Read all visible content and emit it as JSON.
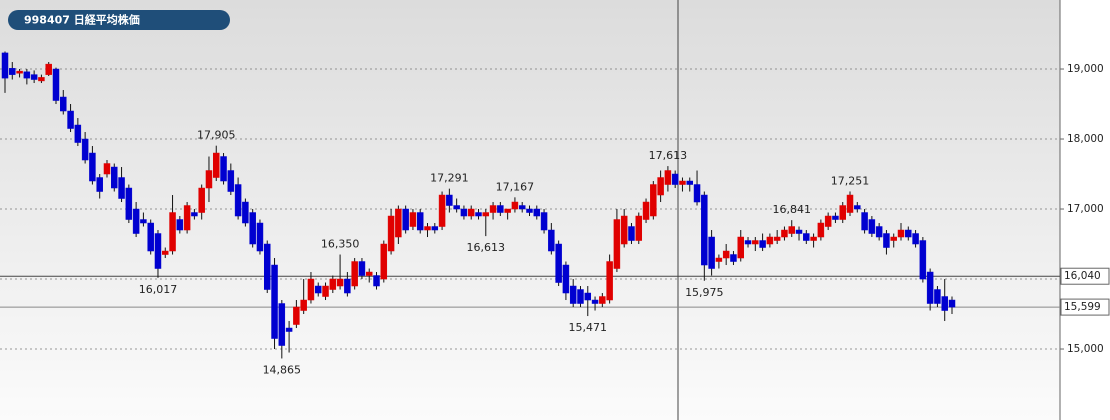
{
  "chart_data": {
    "type": "candlestick",
    "title": "998407 日経平均株価",
    "up_color": "#e00000",
    "down_color": "#0000d0",
    "ylim": [
      13986,
      19986
    ],
    "yticks": [
      {
        "value": 15000,
        "label": "15,000"
      },
      {
        "value": 16000,
        "label": "16,000"
      },
      {
        "value": 17000,
        "label": "17,000"
      },
      {
        "value": 18000,
        "label": "18,000"
      },
      {
        "value": 19000,
        "label": "19,000"
      }
    ],
    "grid": true,
    "hlines": [
      {
        "value": 16040,
        "label": "16,040"
      },
      {
        "value": 15599,
        "label": "15,599"
      }
    ],
    "annotations": [
      {
        "value": 17905,
        "label": "17,905"
      },
      {
        "value": 16017,
        "label": "16,017"
      },
      {
        "value": 14865,
        "label": "14,865"
      },
      {
        "value": 16350,
        "label": "16,350"
      },
      {
        "value": 17291,
        "label": "17,291"
      },
      {
        "value": 16613,
        "label": "16,613"
      },
      {
        "value": 17167,
        "label": "17,167"
      },
      {
        "value": 15471,
        "label": "15,471"
      },
      {
        "value": 17613,
        "label": "17,613"
      },
      {
        "value": 15975,
        "label": "15,975"
      },
      {
        "value": 16841,
        "label": "16,841"
      },
      {
        "value": 17251,
        "label": "17,251"
      }
    ],
    "candles": [
      [
        19230,
        19250,
        18660,
        18870
      ],
      [
        19010,
        19100,
        18850,
        18920
      ],
      [
        18940,
        19000,
        18880,
        18970
      ],
      [
        18960,
        19000,
        18780,
        18870
      ],
      [
        18920,
        18980,
        18800,
        18850
      ],
      [
        18830,
        18920,
        18800,
        18880
      ],
      [
        18920,
        19100,
        18900,
        19070
      ],
      [
        19000,
        19020,
        18500,
        18550
      ],
      [
        18600,
        18700,
        18350,
        18400
      ],
      [
        18400,
        18500,
        18100,
        18150
      ],
      [
        18200,
        18300,
        17900,
        17950
      ],
      [
        18000,
        18100,
        17650,
        17700
      ],
      [
        17800,
        17900,
        17350,
        17400
      ],
      [
        17450,
        17500,
        17150,
        17250
      ],
      [
        17500,
        17700,
        17450,
        17650
      ],
      [
        17600,
        17650,
        17250,
        17300
      ],
      [
        17450,
        17600,
        17100,
        17150
      ],
      [
        17300,
        17350,
        16800,
        16850
      ],
      [
        17000,
        17100,
        16600,
        16650
      ],
      [
        16850,
        16950,
        16750,
        16800
      ],
      [
        16800,
        16850,
        16350,
        16400
      ],
      [
        16650,
        16700,
        16017,
        16150
      ],
      [
        16350,
        16450,
        16300,
        16400
      ],
      [
        16400,
        17200,
        16350,
        16950
      ],
      [
        16850,
        16900,
        16650,
        16700
      ],
      [
        16700,
        17100,
        16650,
        17050
      ],
      [
        16950,
        17000,
        16850,
        16900
      ],
      [
        16950,
        17350,
        16850,
        17300
      ],
      [
        17300,
        17750,
        17100,
        17550
      ],
      [
        17450,
        17905,
        17400,
        17800
      ],
      [
        17750,
        17800,
        17350,
        17400
      ],
      [
        17550,
        17650,
        17200,
        17250
      ],
      [
        17350,
        17450,
        16850,
        16900
      ],
      [
        17100,
        17150,
        16750,
        16800
      ],
      [
        16950,
        17000,
        16450,
        16500
      ],
      [
        16800,
        16850,
        16350,
        16400
      ],
      [
        16500,
        16550,
        15800,
        15850
      ],
      [
        16200,
        16300,
        15000,
        15150
      ],
      [
        15650,
        15700,
        14865,
        15050
      ],
      [
        15300,
        15400,
        14950,
        15250
      ],
      [
        15350,
        15700,
        15300,
        15600
      ],
      [
        15550,
        16000,
        15500,
        15700
      ],
      [
        15700,
        16100,
        15650,
        16000
      ],
      [
        15900,
        15950,
        15750,
        15800
      ],
      [
        15750,
        15950,
        15700,
        15900
      ],
      [
        15850,
        16050,
        15800,
        16000
      ],
      [
        15900,
        16350,
        15850,
        16000
      ],
      [
        16000,
        16100,
        15750,
        15800
      ],
      [
        15900,
        16300,
        15850,
        16250
      ],
      [
        16250,
        16300,
        16000,
        16050
      ],
      [
        16050,
        16150,
        15950,
        16100
      ],
      [
        16050,
        16100,
        15850,
        15900
      ],
      [
        16000,
        16550,
        15950,
        16500
      ],
      [
        16400,
        17000,
        16350,
        16900
      ],
      [
        16600,
        17050,
        16500,
        17000
      ],
      [
        17000,
        17050,
        16650,
        16700
      ],
      [
        16750,
        17000,
        16700,
        16950
      ],
      [
        16950,
        17000,
        16650,
        16700
      ],
      [
        16700,
        16800,
        16600,
        16750
      ],
      [
        16750,
        16800,
        16650,
        16700
      ],
      [
        16750,
        17250,
        16700,
        17200
      ],
      [
        17200,
        17291,
        16950,
        17050
      ],
      [
        17050,
        17150,
        16950,
        17000
      ],
      [
        17000,
        17050,
        16850,
        16900
      ],
      [
        16900,
        17050,
        16850,
        17000
      ],
      [
        16950,
        17000,
        16850,
        16900
      ],
      [
        16900,
        17000,
        16613,
        16950
      ],
      [
        16950,
        17100,
        16850,
        17050
      ],
      [
        17050,
        17100,
        16900,
        16950
      ],
      [
        16950,
        17000,
        16850,
        17000
      ],
      [
        17000,
        17167,
        16950,
        17100
      ],
      [
        17050,
        17100,
        16950,
        17000
      ],
      [
        17000,
        17050,
        16900,
        16950
      ],
      [
        17000,
        17050,
        16850,
        16900
      ],
      [
        16950,
        17000,
        16650,
        16700
      ],
      [
        16700,
        16800,
        16350,
        16400
      ],
      [
        16500,
        16550,
        15900,
        15950
      ],
      [
        16200,
        16250,
        15700,
        15800
      ],
      [
        15900,
        16000,
        15600,
        15650
      ],
      [
        15850,
        15900,
        15600,
        15650
      ],
      [
        15800,
        15900,
        15471,
        15700
      ],
      [
        15700,
        15750,
        15550,
        15650
      ],
      [
        15650,
        15800,
        15600,
        15750
      ],
      [
        15700,
        16350,
        15650,
        16250
      ],
      [
        16150,
        17000,
        16100,
        16850
      ],
      [
        16500,
        17000,
        16450,
        16900
      ],
      [
        16750,
        16800,
        16500,
        16550
      ],
      [
        16550,
        16950,
        16500,
        16900
      ],
      [
        16850,
        17150,
        16800,
        17100
      ],
      [
        16900,
        17400,
        16850,
        17350
      ],
      [
        17200,
        17550,
        17100,
        17450
      ],
      [
        17350,
        17613,
        17250,
        17550
      ],
      [
        17500,
        17550,
        17300,
        17350
      ],
      [
        17350,
        17450,
        17250,
        17400
      ],
      [
        17400,
        17450,
        17250,
        17350
      ],
      [
        17350,
        17550,
        17050,
        17100
      ],
      [
        17200,
        17250,
        15975,
        16200
      ],
      [
        16600,
        16700,
        16050,
        16150
      ],
      [
        16250,
        16350,
        16150,
        16300
      ],
      [
        16300,
        16500,
        16200,
        16400
      ],
      [
        16350,
        16400,
        16200,
        16250
      ],
      [
        16300,
        16700,
        16250,
        16600
      ],
      [
        16550,
        16600,
        16450,
        16500
      ],
      [
        16500,
        16600,
        16400,
        16550
      ],
      [
        16550,
        16650,
        16400,
        16450
      ],
      [
        16500,
        16650,
        16450,
        16600
      ],
      [
        16550,
        16700,
        16500,
        16600
      ],
      [
        16600,
        16750,
        16550,
        16700
      ],
      [
        16650,
        16841,
        16600,
        16750
      ],
      [
        16700,
        16750,
        16550,
        16650
      ],
      [
        16650,
        16700,
        16500,
        16550
      ],
      [
        16550,
        16650,
        16450,
        16600
      ],
      [
        16600,
        16850,
        16550,
        16800
      ],
      [
        16750,
        16950,
        16700,
        16900
      ],
      [
        16900,
        16950,
        16800,
        16850
      ],
      [
        16850,
        17100,
        16800,
        17050
      ],
      [
        16950,
        17251,
        16900,
        17200
      ],
      [
        17050,
        17100,
        16950,
        17000
      ],
      [
        16950,
        17000,
        16650,
        16700
      ],
      [
        16850,
        16900,
        16600,
        16650
      ],
      [
        16750,
        16800,
        16550,
        16600
      ],
      [
        16650,
        16700,
        16350,
        16450
      ],
      [
        16550,
        16650,
        16450,
        16600
      ],
      [
        16600,
        16800,
        16550,
        16700
      ],
      [
        16700,
        16750,
        16550,
        16600
      ],
      [
        16650,
        16700,
        16450,
        16500
      ],
      [
        16550,
        16600,
        15950,
        16000
      ],
      [
        16100,
        16150,
        15550,
        15650
      ],
      [
        15850,
        15900,
        15600,
        15650
      ],
      [
        15750,
        16000,
        15400,
        15550
      ],
      [
        15700,
        15750,
        15500,
        15599
      ]
    ]
  }
}
